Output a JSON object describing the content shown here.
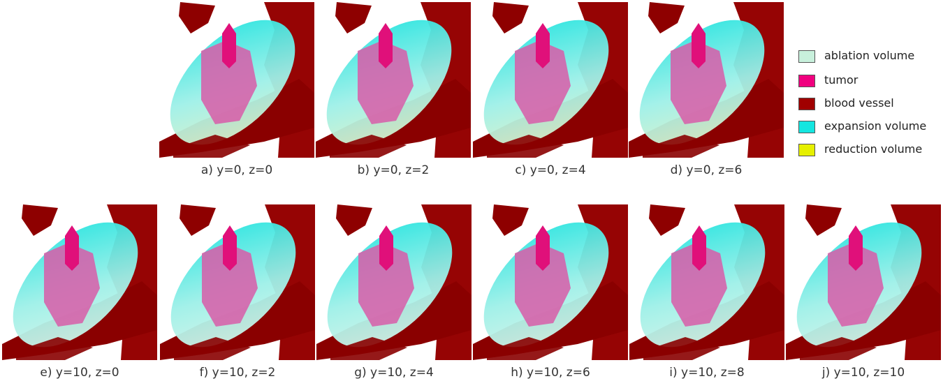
{
  "panels": [
    {
      "caption": "a) y=0, z=0"
    },
    {
      "caption": "b) y=0, z=2"
    },
    {
      "caption": "c) y=0, z=4"
    },
    {
      "caption": "d) y=0, z=6"
    },
    {
      "caption": "e) y=10, z=0"
    },
    {
      "caption": "f) y=10, z=2"
    },
    {
      "caption": "g) y=10, z=4"
    },
    {
      "caption": "h) y=10, z=6"
    },
    {
      "caption": "i) y=10, z=8"
    },
    {
      "caption": "j) y=10, z=10"
    }
  ],
  "legend": [
    {
      "label": "ablation volume",
      "color": "#c8f0dc"
    },
    {
      "label": "tumor",
      "color": "#f0007f"
    },
    {
      "label": "blood vessel",
      "color": "#a00000"
    },
    {
      "label": "expansion volume",
      "color": "#14e6e0"
    },
    {
      "label": "reduction volume",
      "color": "#e6f000"
    }
  ]
}
